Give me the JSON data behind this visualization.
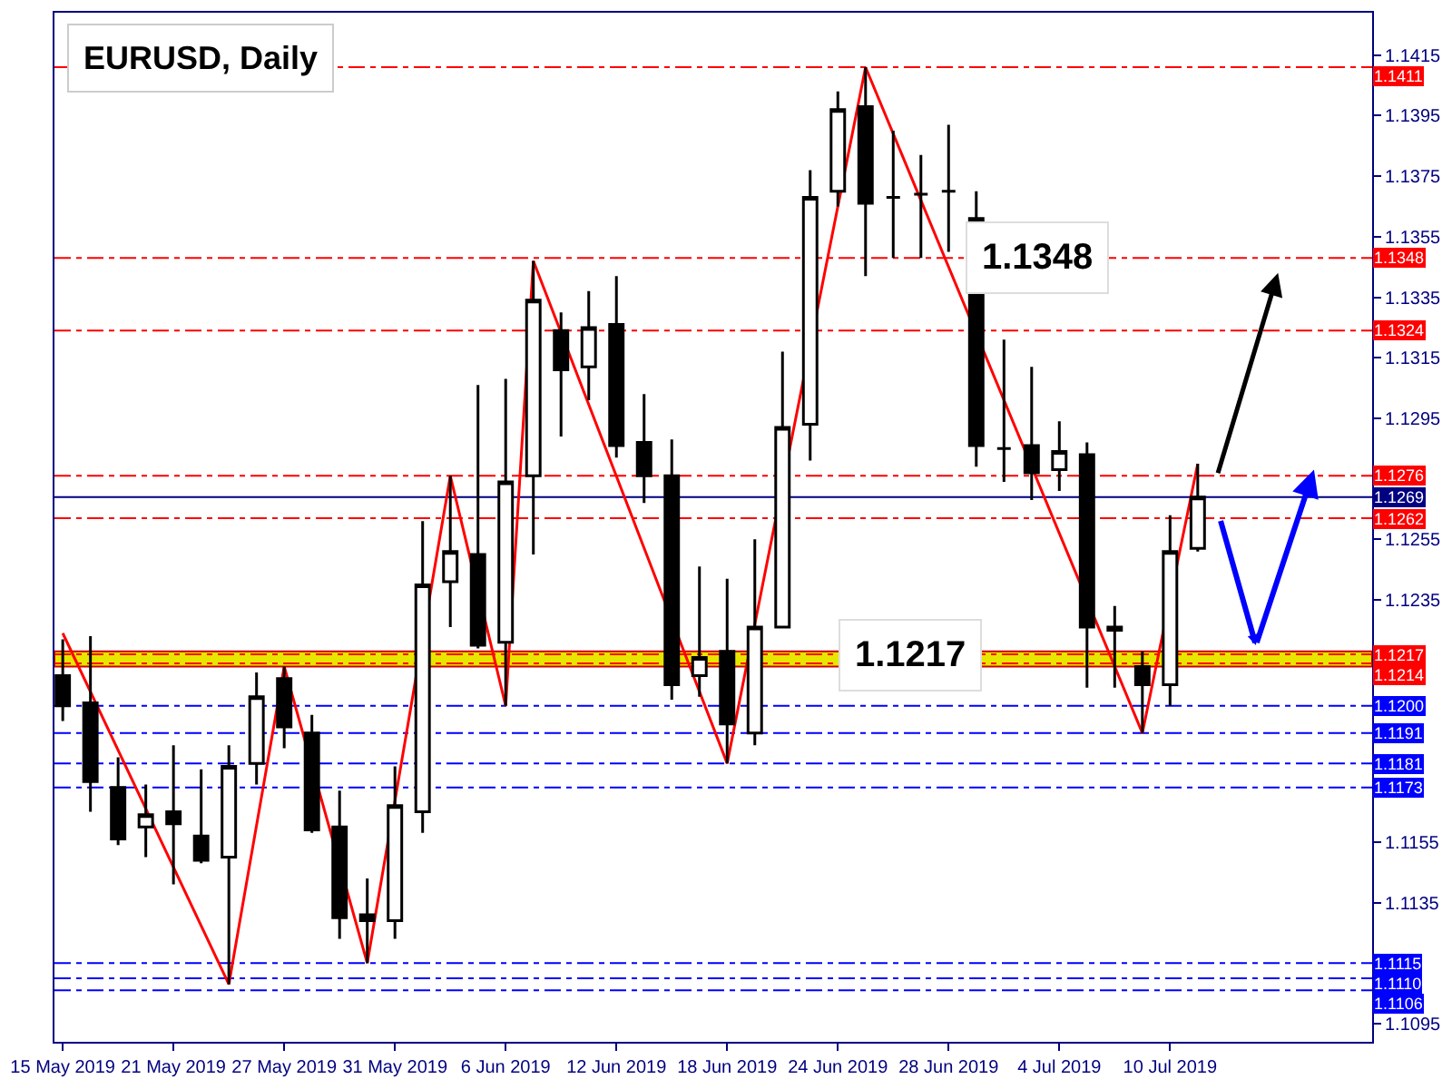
{
  "chart_data": {
    "type": "candlestick",
    "title": "EURUSD, Daily",
    "categories": [
      "15 May 2019",
      null,
      null,
      null,
      "21 May 2019",
      null,
      null,
      null,
      "27 May 2019",
      null,
      null,
      null,
      "31 May 2019",
      null,
      null,
      null,
      "6 Jun 2019",
      null,
      null,
      null,
      "12 Jun 2019",
      null,
      null,
      null,
      "18 Jun 2019",
      null,
      null,
      null,
      "24 Jun 2019",
      null,
      null,
      null,
      "28 Jun 2019",
      null,
      null,
      null,
      "4 Jul 2019",
      null,
      null,
      null,
      "10 Jul 2019",
      null,
      null,
      null,
      null,
      null,
      null,
      null
    ],
    "ohlc": [
      [
        1.121,
        1.1222,
        1.1195,
        1.12
      ],
      [
        1.1201,
        1.1223,
        1.1165,
        1.1175
      ],
      [
        1.1173,
        1.1183,
        1.1154,
        1.1156
      ],
      [
        1.116,
        1.1174,
        1.115,
        1.1164
      ],
      [
        1.1165,
        1.1187,
        1.1141,
        1.1161
      ],
      [
        1.1157,
        1.1179,
        1.1148,
        1.1149
      ],
      [
        1.115,
        1.1187,
        1.1108,
        1.118
      ],
      [
        1.1181,
        1.1211,
        1.1174,
        1.1203
      ],
      [
        1.1209,
        1.1213,
        1.1186,
        1.1193
      ],
      [
        1.1191,
        1.1197,
        1.1158,
        1.1159
      ],
      [
        1.116,
        1.1172,
        1.1123,
        1.113
      ],
      [
        1.1131,
        1.1143,
        1.1115,
        1.1129
      ],
      [
        1.1129,
        1.118,
        1.1123,
        1.1167
      ],
      [
        1.1165,
        1.1261,
        1.1158,
        1.124
      ],
      [
        1.1241,
        1.1276,
        1.1226,
        1.1251
      ],
      [
        1.125,
        1.1306,
        1.1219,
        1.122
      ],
      [
        1.1221,
        1.1308,
        1.12,
        1.1274
      ],
      [
        1.1276,
        1.1347,
        1.125,
        1.1334
      ],
      [
        1.1324,
        1.133,
        1.1289,
        1.1311
      ],
      [
        1.1312,
        1.1337,
        1.1301,
        1.1325
      ],
      [
        1.1326,
        1.1342,
        1.1282,
        1.1286
      ],
      [
        1.1287,
        1.1303,
        1.1267,
        1.1276
      ],
      [
        1.1276,
        1.1288,
        1.1202,
        1.1207
      ],
      [
        1.121,
        1.1246,
        1.1203,
        1.1216
      ],
      [
        1.1218,
        1.1242,
        1.1181,
        1.1194
      ],
      [
        1.1191,
        1.1255,
        1.1187,
        1.1226
      ],
      [
        1.1226,
        1.1317,
        1.1226,
        1.1292
      ],
      [
        1.1293,
        1.1377,
        1.1281,
        1.1368
      ],
      [
        1.137,
        1.1403,
        1.1365,
        1.1397
      ],
      [
        1.1398,
        1.1411,
        1.1342,
        1.1366
      ],
      [
        1.1368,
        1.139,
        1.1348,
        1.1368
      ],
      [
        1.1369,
        1.1382,
        1.1348,
        1.1369
      ],
      [
        1.137,
        1.1392,
        1.135,
        1.137
      ],
      [
        1.1361,
        1.137,
        1.1279,
        1.1286
      ],
      [
        1.1285,
        1.1321,
        1.1274,
        1.1285
      ],
      [
        1.1286,
        1.1312,
        1.1268,
        1.1277
      ],
      [
        1.1278,
        1.1294,
        1.1271,
        1.1284
      ],
      [
        1.1283,
        1.1287,
        1.1206,
        1.1226
      ],
      [
        1.1226,
        1.1233,
        1.1206,
        1.1225
      ],
      [
        1.1213,
        1.1218,
        1.1191,
        1.1207
      ],
      [
        1.1207,
        1.1263,
        1.12,
        1.1251
      ],
      [
        1.1252,
        1.128,
        1.1251,
        1.1269
      ],
      null,
      null,
      null,
      null,
      null,
      null
    ],
    "color": "#000000",
    "series": [
      {
        "type": "line",
        "color": "#ff0000",
        "values": [
          1.1224,
          null,
          null,
          null,
          null,
          null,
          1.1108,
          null,
          1.1213,
          null,
          null,
          1.1115,
          null,
          null,
          1.1276,
          null,
          1.12,
          1.1347,
          null,
          null,
          null,
          null,
          null,
          null,
          1.1181,
          null,
          null,
          null,
          null,
          1.1411,
          null,
          null,
          null,
          null,
          null,
          null,
          null,
          null,
          null,
          1.1191,
          null,
          1.128,
          null,
          null,
          null,
          null,
          null,
          null
        ]
      }
    ],
    "ylim": [
      1.1089,
      1.1429
    ],
    "yticks": [
      1.1095,
      1.1135,
      1.1155,
      1.1235,
      1.1255,
      1.1295,
      1.1315,
      1.1335,
      1.1355,
      1.1375,
      1.1395,
      1.1415
    ],
    "ref_lines": [
      {
        "axis": "y",
        "value": 1.1411,
        "label": "1.1411",
        "color": "#ff0000",
        "line_style": "dashed"
      },
      {
        "axis": "y",
        "value": 1.1348,
        "label": "1.1348",
        "color": "#ff0000",
        "line_style": "dashed"
      },
      {
        "axis": "y",
        "value": 1.1324,
        "label": "1.1324",
        "color": "#ff0000",
        "line_style": "dashed"
      },
      {
        "axis": "y",
        "value": 1.1276,
        "label": "1.1276",
        "color": "#ff0000",
        "line_style": "dashed"
      },
      {
        "axis": "y",
        "value": 1.1269,
        "label": "1.1269",
        "color": "#000080",
        "line_style": "solid"
      },
      {
        "axis": "y",
        "value": 1.1262,
        "label": "1.1262",
        "color": "#ff0000",
        "line_style": "dashed"
      },
      {
        "axis": "y",
        "value": 1.1217,
        "label": "1.1217",
        "color": "#ff0000",
        "line_style": "dashed"
      },
      {
        "axis": "y",
        "value": 1.1214,
        "label": "1.1214",
        "color": "#ff0000",
        "line_style": "dashed"
      },
      {
        "axis": "y",
        "value": 1.12,
        "label": "1.1200",
        "color": "#0000ff",
        "line_style": "dashed"
      },
      {
        "axis": "y",
        "value": 1.1191,
        "label": "1.1191",
        "color": "#0000ff",
        "line_style": "dashed"
      },
      {
        "axis": "y",
        "value": 1.1181,
        "label": "1.1181",
        "color": "#0000ff",
        "line_style": "dashed"
      },
      {
        "axis": "y",
        "value": 1.1173,
        "label": "1.1173",
        "color": "#0000ff",
        "line_style": "dashed"
      },
      {
        "axis": "y",
        "value": 1.1115,
        "label": "1.1115",
        "color": "#0000ff",
        "line_style": "dashed"
      },
      {
        "axis": "y",
        "value": 1.111,
        "label": "1.1110",
        "color": "#0000ff",
        "line_style": "dashed"
      },
      {
        "axis": "y",
        "value": 1.1106,
        "label": "1.1106",
        "color": "#0000ff",
        "line_style": "dashed"
      }
    ],
    "bands": [
      {
        "axis": "y",
        "from": 1.1213,
        "to": 1.1218,
        "color": "#e6e600"
      }
    ],
    "annotations": [
      {
        "text": "1.1348",
        "y": 1.1348
      },
      {
        "text": "1.1217",
        "y": 1.1217
      }
    ],
    "grid": false
  }
}
